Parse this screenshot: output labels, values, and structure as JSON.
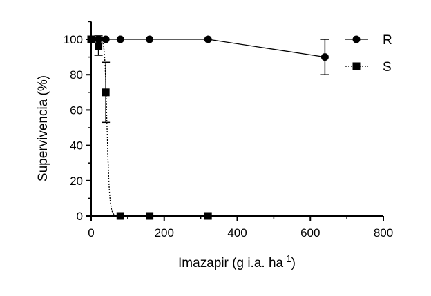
{
  "chart_data": {
    "type": "scatter",
    "xlabel": "Imazapir (g i.a. ha",
    "xlabel_sup": "-1",
    "xlabel_end": ")",
    "ylabel": "Supervivencia (%)",
    "xlim": [
      0,
      800
    ],
    "ylim": [
      0,
      110
    ],
    "xticks": [
      "0",
      "200",
      "400",
      "600",
      "800"
    ],
    "xtick_values": [
      0,
      200,
      400,
      600,
      800
    ],
    "yticks": [
      "0",
      "20",
      "40",
      "60",
      "80",
      "100"
    ],
    "ytick_values": [
      0,
      20,
      40,
      60,
      80,
      100
    ],
    "grid": false,
    "legend_position": "top-right",
    "series": [
      {
        "name": "R",
        "marker": "circle",
        "line": "solid",
        "color": "#000000",
        "x": [
          0,
          20,
          40,
          80,
          160,
          320,
          640
        ],
        "y": [
          100,
          100,
          100,
          100,
          100,
          100,
          90
        ],
        "error": [
          0,
          2,
          0,
          0,
          0,
          0,
          10
        ]
      },
      {
        "name": "S",
        "marker": "square",
        "line": "dotted",
        "color": "#000000",
        "x": [
          0,
          20,
          40,
          80,
          160,
          320
        ],
        "y": [
          100,
          96,
          70,
          0,
          0,
          0
        ],
        "error": [
          0,
          5,
          17,
          0,
          0,
          0
        ]
      }
    ]
  }
}
